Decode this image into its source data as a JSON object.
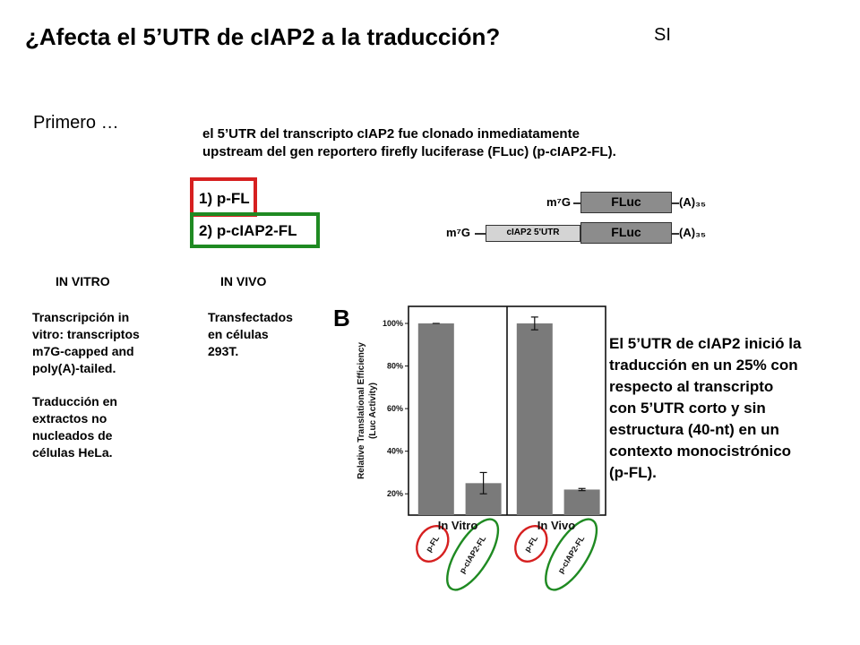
{
  "slide": {
    "title": "¿Afecta el 5’UTR de cIAP2 a la traducción?",
    "answer": "SI",
    "first_label": "Primero …",
    "intro_line1": "el 5’UTR del transcripto cIAP2 fue clonado inmediatamente",
    "intro_line2": "upstream del gen reportero firefly luciferase (FLuc) (p-cIAP2-FL)."
  },
  "constructs": {
    "item1": "1) p-FL",
    "item2": "2) p-cIAP2-FL",
    "cap": "m⁷G",
    "fluc": "FLuc",
    "utr": "cIAP2 5'UTR",
    "polyA": "(A)₃₅",
    "highlight_red": "#d62020",
    "highlight_green": "#1f8a22"
  },
  "in_vitro": {
    "header": "IN VITRO",
    "para1": [
      "Transcripción in",
      "vitro: transcriptos",
      "m7G-capped and",
      "poly(A)-tailed."
    ],
    "para2": [
      "Traducción en",
      "extractos no",
      "nucleados de",
      "células HeLa."
    ]
  },
  "in_vivo": {
    "header": "IN VIVO",
    "lines": [
      "Transfectados",
      "en células",
      "293T."
    ]
  },
  "result": {
    "lines": [
      "El 5’UTR de cIAP2 inició la",
      "traducción en un 25% con",
      "respecto al transcripto",
      "con 5’UTR corto y sin",
      "estructura (40-nt) en un",
      "contexto monocistrónico",
      "(p-FL)."
    ]
  },
  "chart_data": {
    "type": "bar",
    "panel_label": "B",
    "ylabel_line1": "Relative Translational Efficiency",
    "ylabel_line2": "(Luc Activity)",
    "ytick_labels": [
      "20%",
      "40%",
      "60%",
      "80%",
      "100%"
    ],
    "ytick_values": [
      20,
      40,
      60,
      80,
      100
    ],
    "ylim": [
      10,
      108
    ],
    "groups": [
      {
        "label": "In Vitro",
        "categories": [
          "p-FL",
          "p-cIAP2-FL"
        ],
        "values": [
          100,
          25
        ],
        "errors": [
          0,
          5
        ]
      },
      {
        "label": "In Vivo",
        "categories": [
          "p-FL",
          "p-cIAP2-FL"
        ],
        "values": [
          100,
          22
        ],
        "errors": [
          3,
          0.5
        ]
      }
    ],
    "bar_color": "#7a7a7a",
    "circle_colors": [
      "#d62020",
      "#1f8a22",
      "#d62020",
      "#1f8a22"
    ]
  }
}
